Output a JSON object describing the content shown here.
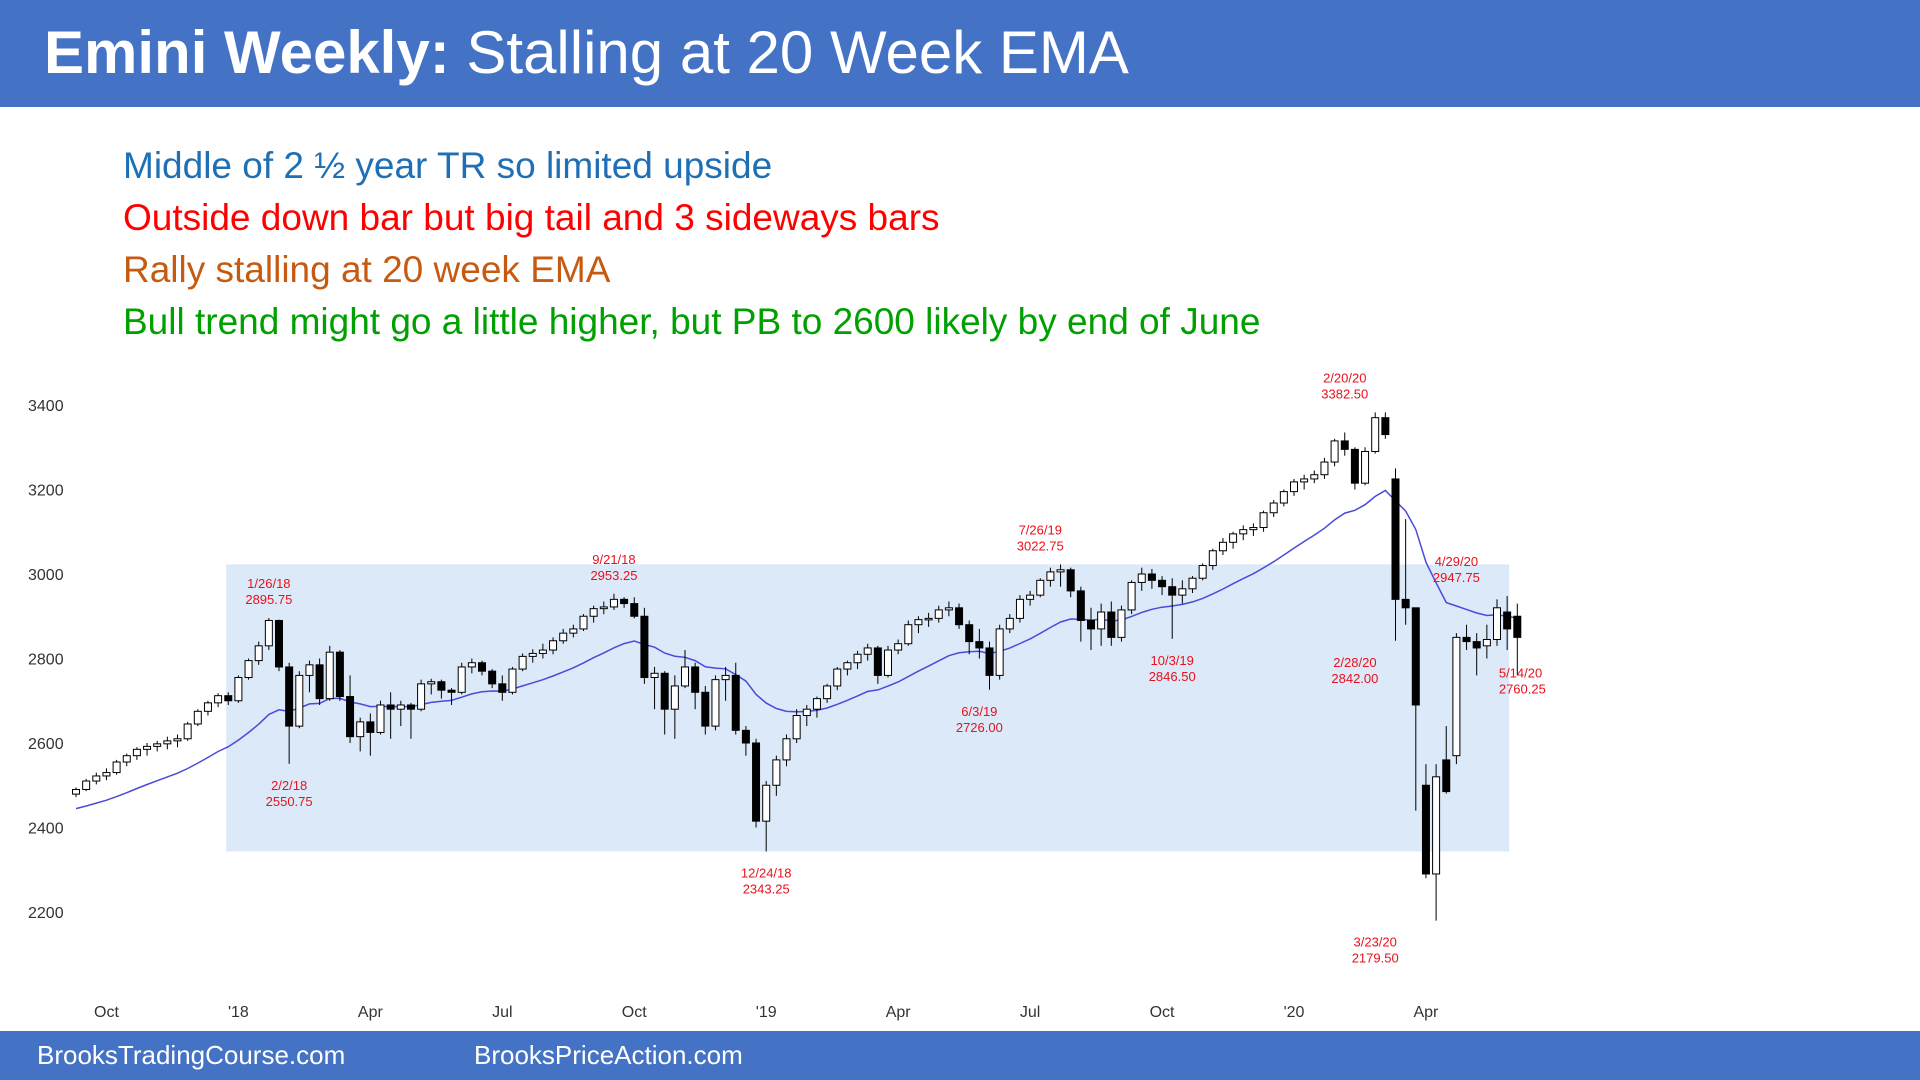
{
  "header": {
    "title_bold": "Emini Weekly:",
    "title_rest": "Stalling at 20 Week EMA",
    "color": "#4472c4"
  },
  "bullets": [
    {
      "text": "Middle of 2 ½ year TR so limited upside",
      "color": "#1f6fb5"
    },
    {
      "text": "Outside down bar but big tail and 3 sideways bars",
      "color": "#ff0000"
    },
    {
      "text": "Rally stalling at 20 week EMA",
      "color": "#c55a11"
    },
    {
      "text": "Bull trend might go a little higher, but PB to 2600 likely by end of June",
      "color": "#00a000"
    }
  ],
  "footer": {
    "left": "BrooksTradingCourse.com",
    "right": "BrooksPriceAction.com"
  },
  "chart_data": {
    "type": "candlestick",
    "ylim": [
      2050,
      3500
    ],
    "yticks": [
      2200,
      2400,
      2600,
      2800,
      3000,
      3200,
      3400
    ],
    "xlabels": [
      {
        "label": "Oct",
        "week": 3
      },
      {
        "label": "'18",
        "week": 16
      },
      {
        "label": "Apr",
        "week": 29
      },
      {
        "label": "Jul",
        "week": 42
      },
      {
        "label": "Oct",
        "week": 55
      },
      {
        "label": "'19",
        "week": 68
      },
      {
        "label": "Apr",
        "week": 81
      },
      {
        "label": "Jul",
        "week": 94
      },
      {
        "label": "Oct",
        "week": 107
      },
      {
        "label": "'20",
        "week": 120
      },
      {
        "label": "Apr",
        "week": 133
      }
    ],
    "trading_range": {
      "low": 2343.25,
      "high": 3022.75,
      "from_week": 15,
      "to_week": 141,
      "color": "#dce9f8"
    },
    "ema_color": "#4a4adb",
    "candles": [
      [
        2479,
        2495,
        2472,
        2490
      ],
      [
        2490,
        2515,
        2486,
        2510
      ],
      [
        2510,
        2530,
        2502,
        2522
      ],
      [
        2522,
        2540,
        2512,
        2530
      ],
      [
        2530,
        2560,
        2525,
        2555
      ],
      [
        2555,
        2575,
        2545,
        2570
      ],
      [
        2570,
        2590,
        2560,
        2585
      ],
      [
        2585,
        2600,
        2570,
        2592
      ],
      [
        2592,
        2605,
        2580,
        2598
      ],
      [
        2598,
        2615,
        2585,
        2605
      ],
      [
        2605,
        2620,
        2590,
        2610
      ],
      [
        2610,
        2650,
        2605,
        2645
      ],
      [
        2645,
        2680,
        2640,
        2675
      ],
      [
        2675,
        2700,
        2665,
        2695
      ],
      [
        2695,
        2718,
        2685,
        2712
      ],
      [
        2712,
        2720,
        2690,
        2700
      ],
      [
        2700,
        2760,
        2695,
        2755
      ],
      [
        2755,
        2800,
        2750,
        2795
      ],
      [
        2795,
        2840,
        2785,
        2830
      ],
      [
        2830,
        2895.75,
        2820,
        2890
      ],
      [
        2890,
        2892,
        2770,
        2780
      ],
      [
        2780,
        2790,
        2550.75,
        2640
      ],
      [
        2640,
        2770,
        2635,
        2760
      ],
      [
        2760,
        2795,
        2720,
        2785
      ],
      [
        2785,
        2800,
        2690,
        2705
      ],
      [
        2705,
        2830,
        2700,
        2815
      ],
      [
        2815,
        2820,
        2700,
        2710
      ],
      [
        2710,
        2760,
        2600,
        2615
      ],
      [
        2615,
        2660,
        2580,
        2650
      ],
      [
        2650,
        2670,
        2570,
        2625
      ],
      [
        2625,
        2700,
        2620,
        2690
      ],
      [
        2690,
        2720,
        2610,
        2680
      ],
      [
        2680,
        2700,
        2640,
        2690
      ],
      [
        2690,
        2695,
        2610,
        2680
      ],
      [
        2680,
        2750,
        2675,
        2740
      ],
      [
        2740,
        2752,
        2715,
        2745
      ],
      [
        2745,
        2750,
        2705,
        2725
      ],
      [
        2725,
        2730,
        2690,
        2720
      ],
      [
        2720,
        2790,
        2715,
        2780
      ],
      [
        2780,
        2800,
        2765,
        2790
      ],
      [
        2790,
        2795,
        2760,
        2770
      ],
      [
        2770,
        2775,
        2730,
        2740
      ],
      [
        2740,
        2760,
        2700,
        2720
      ],
      [
        2720,
        2780,
        2715,
        2775
      ],
      [
        2775,
        2812,
        2770,
        2805
      ],
      [
        2805,
        2822,
        2790,
        2812
      ],
      [
        2812,
        2835,
        2800,
        2820
      ],
      [
        2820,
        2850,
        2810,
        2842
      ],
      [
        2842,
        2870,
        2835,
        2860
      ],
      [
        2860,
        2880,
        2850,
        2870
      ],
      [
        2870,
        2905,
        2865,
        2900
      ],
      [
        2900,
        2925,
        2885,
        2918
      ],
      [
        2918,
        2935,
        2905,
        2922
      ],
      [
        2922,
        2953.25,
        2915,
        2940
      ],
      [
        2940,
        2945,
        2920,
        2930
      ],
      [
        2930,
        2945,
        2895,
        2900
      ],
      [
        2900,
        2920,
        2740,
        2755
      ],
      [
        2755,
        2780,
        2680,
        2765
      ],
      [
        2765,
        2770,
        2620,
        2680
      ],
      [
        2680,
        2760,
        2610,
        2735
      ],
      [
        2735,
        2820,
        2730,
        2780
      ],
      [
        2780,
        2790,
        2680,
        2720
      ],
      [
        2720,
        2735,
        2620,
        2640
      ],
      [
        2640,
        2760,
        2630,
        2750
      ],
      [
        2750,
        2780,
        2700,
        2760
      ],
      [
        2760,
        2790,
        2620,
        2630
      ],
      [
        2630,
        2640,
        2570,
        2600
      ],
      [
        2600,
        2610,
        2400,
        2415
      ],
      [
        2415,
        2510,
        2343.25,
        2500
      ],
      [
        2500,
        2570,
        2475,
        2560
      ],
      [
        2560,
        2620,
        2545,
        2610
      ],
      [
        2610,
        2680,
        2600,
        2665
      ],
      [
        2665,
        2690,
        2640,
        2680
      ],
      [
        2680,
        2710,
        2660,
        2705
      ],
      [
        2705,
        2740,
        2695,
        2735
      ],
      [
        2735,
        2780,
        2725,
        2775
      ],
      [
        2775,
        2795,
        2760,
        2790
      ],
      [
        2790,
        2818,
        2775,
        2810
      ],
      [
        2810,
        2835,
        2795,
        2825
      ],
      [
        2825,
        2830,
        2740,
        2760
      ],
      [
        2760,
        2830,
        2755,
        2820
      ],
      [
        2820,
        2845,
        2810,
        2835
      ],
      [
        2835,
        2890,
        2830,
        2880
      ],
      [
        2880,
        2900,
        2860,
        2892
      ],
      [
        2892,
        2908,
        2875,
        2895
      ],
      [
        2895,
        2925,
        2885,
        2915
      ],
      [
        2915,
        2935,
        2900,
        2920
      ],
      [
        2920,
        2930,
        2870,
        2880
      ],
      [
        2880,
        2890,
        2810,
        2840
      ],
      [
        2840,
        2870,
        2800,
        2825
      ],
      [
        2825,
        2840,
        2726,
        2760
      ],
      [
        2760,
        2880,
        2750,
        2870
      ],
      [
        2870,
        2905,
        2860,
        2895
      ],
      [
        2895,
        2950,
        2885,
        2940
      ],
      [
        2940,
        2960,
        2925,
        2950
      ],
      [
        2950,
        2990,
        2945,
        2985
      ],
      [
        2985,
        3015,
        2970,
        3005
      ],
      [
        3005,
        3022.75,
        2970,
        3010
      ],
      [
        3010,
        3015,
        2945,
        2960
      ],
      [
        2960,
        2970,
        2840,
        2890
      ],
      [
        2890,
        2920,
        2820,
        2870
      ],
      [
        2870,
        2930,
        2830,
        2910
      ],
      [
        2910,
        2935,
        2830,
        2850
      ],
      [
        2850,
        2925,
        2840,
        2915
      ],
      [
        2915,
        2985,
        2905,
        2980
      ],
      [
        2980,
        3015,
        2960,
        3000
      ],
      [
        3000,
        3012,
        2965,
        2985
      ],
      [
        2985,
        2995,
        2950,
        2970
      ],
      [
        2970,
        2990,
        2846.5,
        2950
      ],
      [
        2950,
        2985,
        2930,
        2965
      ],
      [
        2965,
        2995,
        2955,
        2990
      ],
      [
        2990,
        3025,
        2985,
        3020
      ],
      [
        3020,
        3060,
        3010,
        3055
      ],
      [
        3055,
        3085,
        3045,
        3075
      ],
      [
        3075,
        3100,
        3060,
        3095
      ],
      [
        3095,
        3115,
        3080,
        3105
      ],
      [
        3105,
        3120,
        3090,
        3110
      ],
      [
        3110,
        3150,
        3100,
        3145
      ],
      [
        3145,
        3175,
        3135,
        3168
      ],
      [
        3168,
        3200,
        3160,
        3195
      ],
      [
        3195,
        3225,
        3185,
        3218
      ],
      [
        3218,
        3235,
        3200,
        3225
      ],
      [
        3225,
        3245,
        3215,
        3235
      ],
      [
        3235,
        3275,
        3225,
        3265
      ],
      [
        3265,
        3320,
        3255,
        3315
      ],
      [
        3315,
        3335,
        3280,
        3295
      ],
      [
        3295,
        3300,
        3200,
        3215
      ],
      [
        3215,
        3300,
        3210,
        3290
      ],
      [
        3290,
        3382.5,
        3285,
        3370
      ],
      [
        3370,
        3382.5,
        3320,
        3330
      ],
      [
        3225,
        3250,
        2842,
        2940
      ],
      [
        2940,
        3130,
        2880,
        2920
      ],
      [
        2920,
        2920,
        2440,
        2690
      ],
      [
        2500,
        2550,
        2280,
        2290
      ],
      [
        2290,
        2550,
        2179.5,
        2520
      ],
      [
        2560,
        2640,
        2480,
        2485
      ],
      [
        2570,
        2860,
        2550,
        2850
      ],
      [
        2850,
        2880,
        2820,
        2840
      ],
      [
        2840,
        2860,
        2760,
        2825
      ],
      [
        2830,
        2880,
        2800,
        2845
      ],
      [
        2845,
        2940,
        2830,
        2920
      ],
      [
        2910,
        2947.75,
        2820,
        2870
      ],
      [
        2900,
        2930,
        2760.25,
        2850
      ]
    ],
    "annotations": [
      {
        "text": [
          "1/26/18",
          "2895.75"
        ],
        "week": 19,
        "price": 2895.75,
        "pos": "above"
      },
      {
        "text": [
          "2/2/18",
          "2550.75"
        ],
        "week": 21,
        "price": 2550.75,
        "pos": "below"
      },
      {
        "text": [
          "9/21/18",
          "2953.25"
        ],
        "week": 53,
        "price": 2953.25,
        "pos": "above"
      },
      {
        "text": [
          "12/24/18",
          "2343.25"
        ],
        "week": 68,
        "price": 2343.25,
        "pos": "below"
      },
      {
        "text": [
          "6/3/19",
          "2726.00"
        ],
        "week": 89,
        "price": 2726.0,
        "pos": "below"
      },
      {
        "text": [
          "7/26/19",
          "3022.75"
        ],
        "week": 95,
        "price": 3022.75,
        "pos": "above"
      },
      {
        "text": [
          "10/3/19",
          "2846.50"
        ],
        "week": 108,
        "price": 2846.5,
        "pos": "below"
      },
      {
        "text": [
          "2/20/20",
          "3382.50"
        ],
        "week": 125,
        "price": 3382.5,
        "pos": "above"
      },
      {
        "text": [
          "2/28/20",
          "2842.00"
        ],
        "week": 126,
        "price": 2842.0,
        "pos": "below"
      },
      {
        "text": [
          "3/23/20",
          "2179.50"
        ],
        "week": 128,
        "price": 2179.5,
        "pos": "below"
      },
      {
        "text": [
          "4/29/20",
          "2947.75"
        ],
        "week": 136,
        "price": 2947.75,
        "pos": "above"
      },
      {
        "text": [
          "5/14/20",
          "2760.25"
        ],
        "week": 139,
        "price": 2760.25,
        "pos": "right"
      }
    ]
  }
}
